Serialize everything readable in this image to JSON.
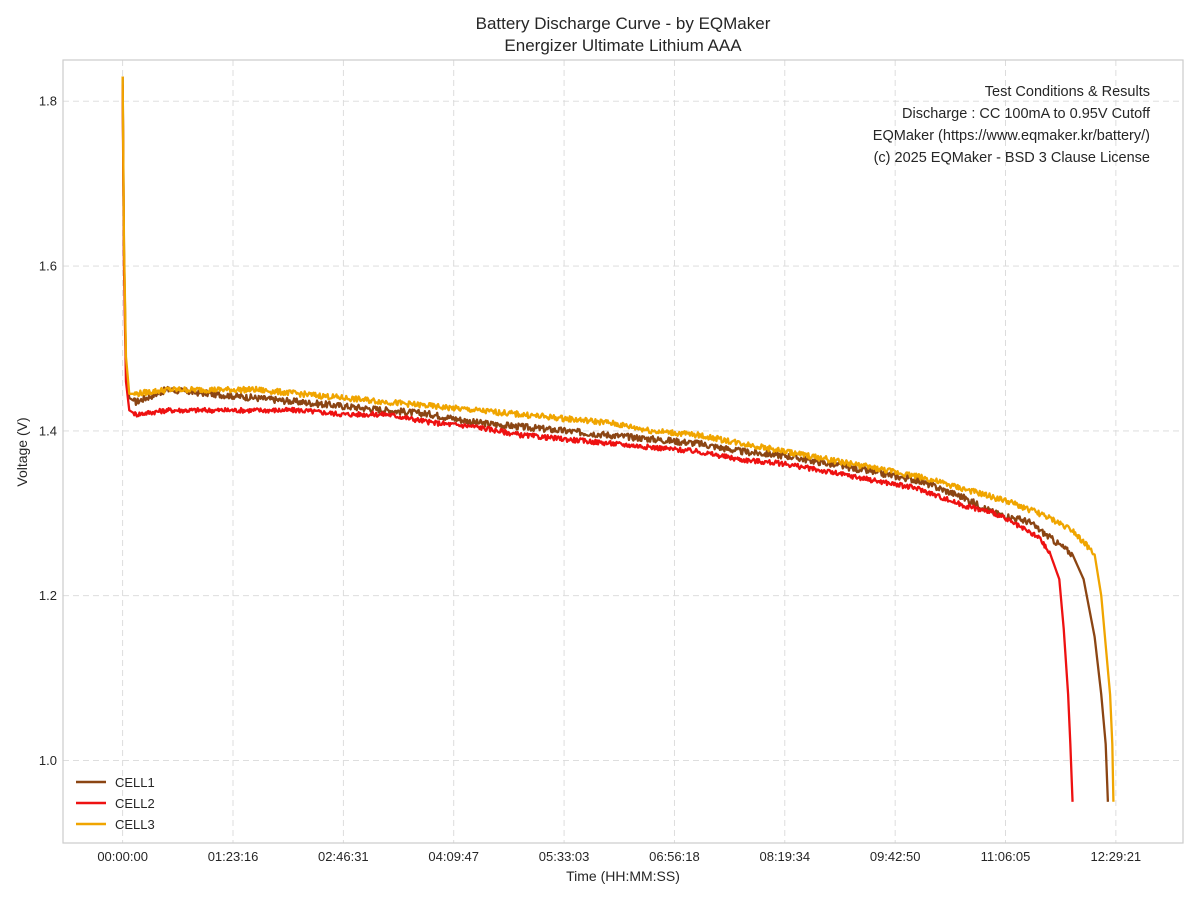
{
  "chart_data": {
    "type": "line",
    "title": "Battery Discharge Curve - by EQMaker",
    "subtitle": "Energizer Ultimate Lithium AAA",
    "xlabel": "Time (HH:MM:SS)",
    "ylabel": "Voltage (V)",
    "x_unit": "seconds",
    "xlim": [
      -2700,
      48000
    ],
    "ylim": [
      0.9,
      1.85
    ],
    "x_ticks": [
      0,
      4996,
      9991,
      14987,
      19983,
      24978,
      29974,
      34970,
      39965,
      44961
    ],
    "x_tick_labels": [
      "00:00:00",
      "01:23:16",
      "02:46:31",
      "04:09:47",
      "05:33:03",
      "06:56:18",
      "08:19:34",
      "09:42:50",
      "11:06:05",
      "12:29:21"
    ],
    "y_ticks": [
      1.0,
      1.2,
      1.4,
      1.6,
      1.8
    ],
    "y_tick_labels": [
      "1.0",
      "1.2",
      "1.4",
      "1.6",
      "1.8"
    ],
    "grid": true,
    "legend_position": "bottom-left",
    "series": [
      {
        "name": "CELL1",
        "color": "#8B4513",
        "x": [
          0,
          60,
          150,
          300,
          600,
          2000,
          4000,
          6000,
          8000,
          10000,
          12000,
          14000,
          16000,
          18000,
          20000,
          22000,
          24000,
          26000,
          28000,
          30000,
          32000,
          34000,
          36000,
          38000,
          39500,
          41000,
          42000,
          43000,
          43500,
          44000,
          44300,
          44500,
          44600
        ],
        "y": [
          1.83,
          1.62,
          1.48,
          1.44,
          1.435,
          1.45,
          1.445,
          1.44,
          1.435,
          1.43,
          1.425,
          1.42,
          1.41,
          1.405,
          1.4,
          1.395,
          1.39,
          1.385,
          1.375,
          1.37,
          1.36,
          1.35,
          1.34,
          1.32,
          1.3,
          1.29,
          1.27,
          1.25,
          1.22,
          1.15,
          1.08,
          1.02,
          0.95
        ]
      },
      {
        "name": "CELL2",
        "color": "#EE1111",
        "x": [
          0,
          60,
          150,
          300,
          600,
          2000,
          4000,
          6000,
          8000,
          10000,
          12000,
          14000,
          16000,
          18000,
          20000,
          22000,
          24000,
          26000,
          28000,
          30000,
          32000,
          34000,
          36000,
          38000,
          39500,
          40500,
          41500,
          42000,
          42400,
          42600,
          42800,
          42900,
          43000
        ],
        "y": [
          1.82,
          1.6,
          1.46,
          1.425,
          1.42,
          1.425,
          1.425,
          1.425,
          1.425,
          1.42,
          1.42,
          1.41,
          1.405,
          1.395,
          1.39,
          1.385,
          1.38,
          1.375,
          1.365,
          1.36,
          1.35,
          1.34,
          1.33,
          1.31,
          1.3,
          1.285,
          1.27,
          1.25,
          1.22,
          1.16,
          1.08,
          1.02,
          0.95
        ]
      },
      {
        "name": "CELL3",
        "color": "#F0A500",
        "x": [
          0,
          60,
          150,
          300,
          600,
          2000,
          4000,
          6000,
          8000,
          10000,
          12000,
          14000,
          16000,
          18000,
          20000,
          22000,
          24000,
          26000,
          28000,
          30000,
          32000,
          34000,
          36000,
          38000,
          40000,
          41500,
          43000,
          44000,
          44300,
          44500,
          44700,
          44800,
          44850
        ],
        "y": [
          1.83,
          1.63,
          1.49,
          1.445,
          1.445,
          1.45,
          1.45,
          1.45,
          1.445,
          1.44,
          1.435,
          1.43,
          1.425,
          1.42,
          1.415,
          1.41,
          1.4,
          1.395,
          1.385,
          1.375,
          1.365,
          1.355,
          1.345,
          1.33,
          1.315,
          1.3,
          1.28,
          1.25,
          1.2,
          1.14,
          1.08,
          1.02,
          0.95
        ]
      }
    ],
    "info_box": [
      "Test Conditions & Results",
      "Discharge : CC 100mA to 0.95V Cutoff",
      "EQMaker (https://www.eqmaker.kr/battery/)",
      "(c) 2025 EQMaker - BSD 3 Clause License"
    ]
  }
}
